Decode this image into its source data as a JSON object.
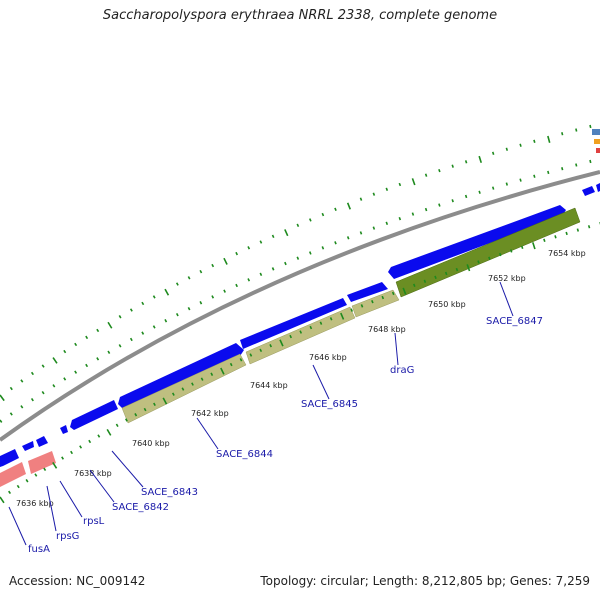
{
  "title": "Saccharopolyspora erythraea NRRL 2338, complete genome",
  "footer": {
    "accession_label": "Accession:",
    "accession": "NC_009142",
    "summary": "Topology: circular; Length: 8,212,805 bp; Genes: 7,259"
  },
  "colors": {
    "backbone": "#8c8c8c",
    "cds": "#0a0aee",
    "gene_khaki": "#bfbf80",
    "gene_olive": "#6b8e23",
    "gene_pink": "#f08080",
    "tick": "#1e8a1e",
    "label": "#1a1aa8"
  },
  "ruler": {
    "unit": "kbp",
    "labels": [
      "7636 kbp",
      "7638 kbp",
      "7640 kbp",
      "7642 kbp",
      "7644 kbp",
      "7646 kbp",
      "7648 kbp",
      "7650 kbp",
      "7652 kbp",
      "7654 kbp"
    ]
  },
  "gene_labels": [
    "fusA",
    "rpsG",
    "rpsL",
    "SACE_6842",
    "SACE_6843",
    "SACE_6844",
    "SACE_6845",
    "draG",
    "SACE_6847"
  ]
}
